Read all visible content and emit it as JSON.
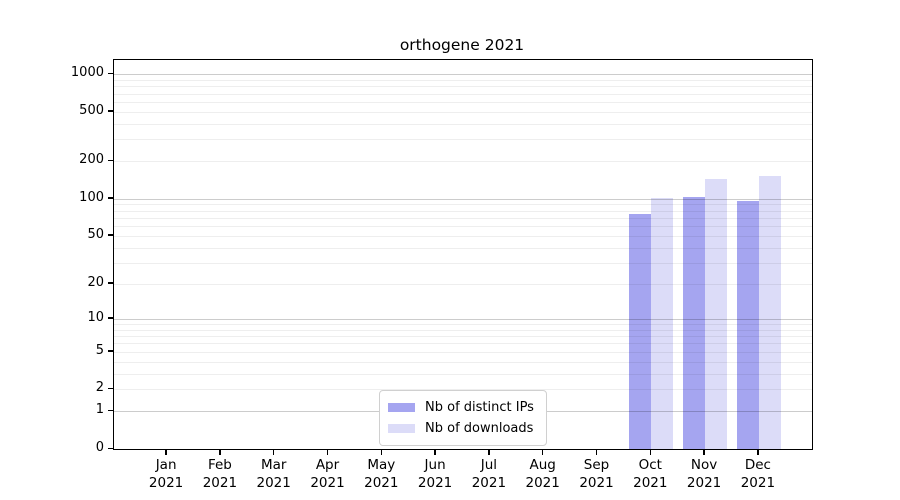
{
  "chart_data": {
    "type": "bar",
    "title": "orthogene 2021",
    "categories": [
      {
        "month": "Jan",
        "year": "2021"
      },
      {
        "month": "Feb",
        "year": "2021"
      },
      {
        "month": "Mar",
        "year": "2021"
      },
      {
        "month": "Apr",
        "year": "2021"
      },
      {
        "month": "May",
        "year": "2021"
      },
      {
        "month": "Jun",
        "year": "2021"
      },
      {
        "month": "Jul",
        "year": "2021"
      },
      {
        "month": "Aug",
        "year": "2021"
      },
      {
        "month": "Sep",
        "year": "2021"
      },
      {
        "month": "Oct",
        "year": "2021"
      },
      {
        "month": "Nov",
        "year": "2021"
      },
      {
        "month": "Dec",
        "year": "2021"
      }
    ],
    "series": [
      {
        "name": "Nb of distinct IPs",
        "color": "#a5a5f0",
        "values": [
          0,
          0,
          0,
          0,
          0,
          0,
          0,
          0,
          0,
          75,
          104,
          96
        ]
      },
      {
        "name": "Nb of downloads",
        "color": "#dcdcf8",
        "values": [
          0,
          0,
          0,
          0,
          0,
          0,
          0,
          0,
          0,
          102,
          143,
          152
        ]
      }
    ],
    "y_ticks": [
      0,
      1,
      2,
      5,
      10,
      20,
      50,
      100,
      200,
      500,
      1000
    ],
    "y_scale": "log1p",
    "ylim": [
      0,
      1300
    ],
    "xlabel": "",
    "ylabel": "",
    "grid": "horizontal-major-minor",
    "legend_position": "inside-bottom-center"
  },
  "colors": {
    "major_grid": "#cbcbcb",
    "minor_grid": "#ececec",
    "axis": "#000000",
    "background": "#ffffff"
  }
}
